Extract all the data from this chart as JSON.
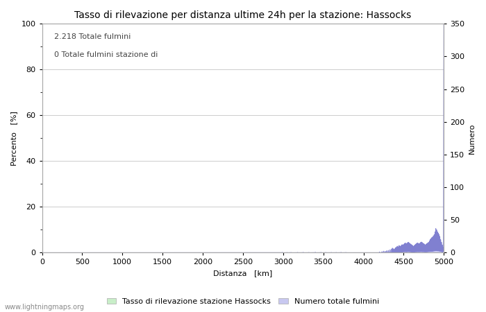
{
  "title": "Tasso di rilevazione per distanza ultime 24h per la stazione: Hassocks",
  "xlabel": "Distanza   [km]",
  "ylabel_left": "Percento   [%]",
  "ylabel_right": "Numero",
  "annotation_line1": "2.218 Totale fulmini",
  "annotation_line2": "0 Totale fulmini stazione di",
  "xlim": [
    0,
    5000
  ],
  "ylim_left": [
    0,
    100
  ],
  "ylim_right": [
    0,
    350
  ],
  "xticks": [
    0,
    500,
    1000,
    1500,
    2000,
    2500,
    3000,
    3500,
    4000,
    4500,
    5000
  ],
  "yticks_left": [
    0,
    20,
    40,
    60,
    80,
    100
  ],
  "yticks_right": [
    0,
    50,
    100,
    150,
    200,
    250,
    300,
    350
  ],
  "legend_label_green": "Tasso di rilevazione stazione Hassocks",
  "legend_label_blue": "Numero totale fulmini",
  "fill_green_color": "#c8eec8",
  "fill_blue_color": "#c8c8f0",
  "line_blue_color": "#8080d0",
  "line_green_color": "#90d090",
  "watermark": "www.lightningmaps.org",
  "bg_color": "#ffffff",
  "grid_color": "#cccccc",
  "title_fontsize": 10,
  "axis_fontsize": 8,
  "tick_fontsize": 8,
  "annotation_fontsize": 8,
  "legend_fontsize": 8
}
